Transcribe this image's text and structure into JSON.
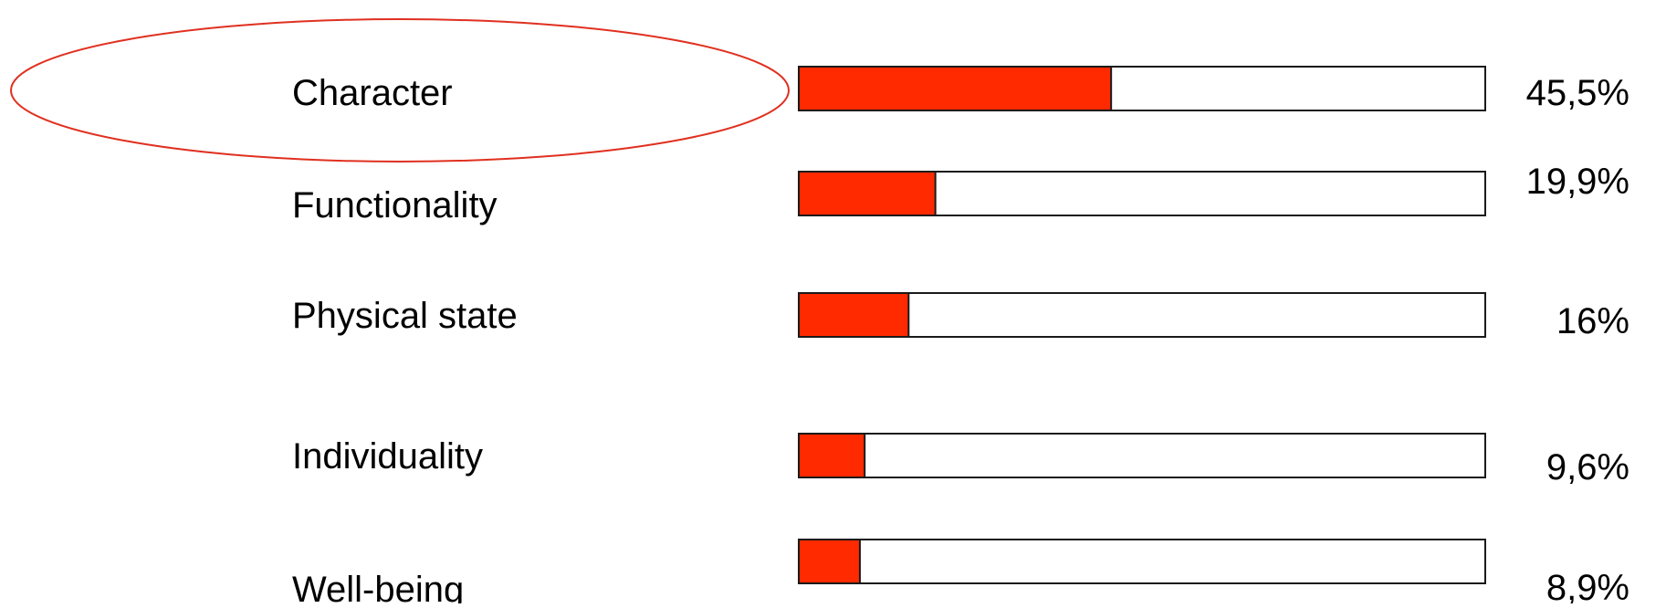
{
  "chart_data": {
    "type": "bar",
    "orientation": "horizontal",
    "categories": [
      "Character",
      "Functionality",
      "Physical state",
      "Individuality",
      "Well-being"
    ],
    "values": [
      45.5,
      19.9,
      16,
      9.6,
      8.9
    ],
    "value_labels": [
      "45,5%",
      "19,9%",
      "16%",
      "9,6%",
      "8,9%"
    ],
    "xlim": [
      0,
      100
    ],
    "unit": "%",
    "grid": false,
    "legend": "none",
    "highlight": {
      "category": "Character",
      "shape": "ellipse",
      "color": "#e03020"
    },
    "colors": {
      "bar_fill": "#ff2a00",
      "bar_stroke": "#1a1a1a",
      "track_fill": "#ffffff",
      "text": "#000000"
    }
  }
}
